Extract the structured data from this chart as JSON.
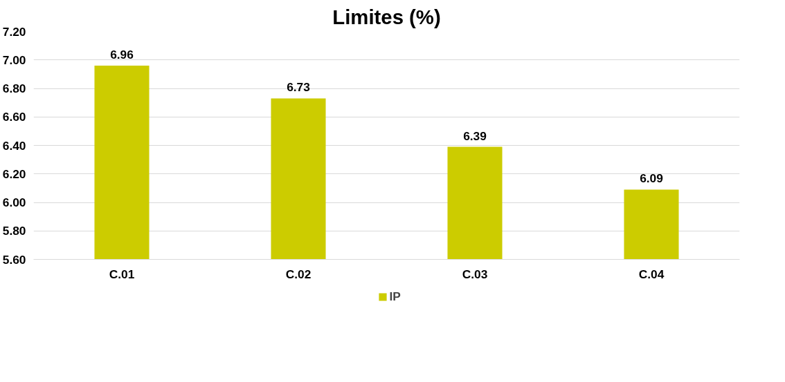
{
  "chart_data": {
    "type": "bar",
    "title": "Limites (%)",
    "categories": [
      "C.01",
      "C.02",
      "C.03",
      "C.04"
    ],
    "series": [
      {
        "name": "IP",
        "color": "#cccc00",
        "values": [
          6.96,
          6.73,
          6.39,
          6.09
        ]
      }
    ],
    "ylim": [
      5.6,
      7.2
    ],
    "yticks": [
      {
        "value": 5.6,
        "label": "5.60"
      },
      {
        "value": 5.8,
        "label": "5.80"
      },
      {
        "value": 6.0,
        "label": "6.00"
      },
      {
        "value": 6.2,
        "label": "6.20"
      },
      {
        "value": 6.4,
        "label": "6.40"
      },
      {
        "value": 6.6,
        "label": "6.60"
      },
      {
        "value": 6.8,
        "label": "6.80"
      },
      {
        "value": 7.0,
        "label": "7.00"
      },
      {
        "value": 7.2,
        "label": "7.20"
      }
    ],
    "grid": "y",
    "legend": "bottom",
    "data_labels": true
  }
}
